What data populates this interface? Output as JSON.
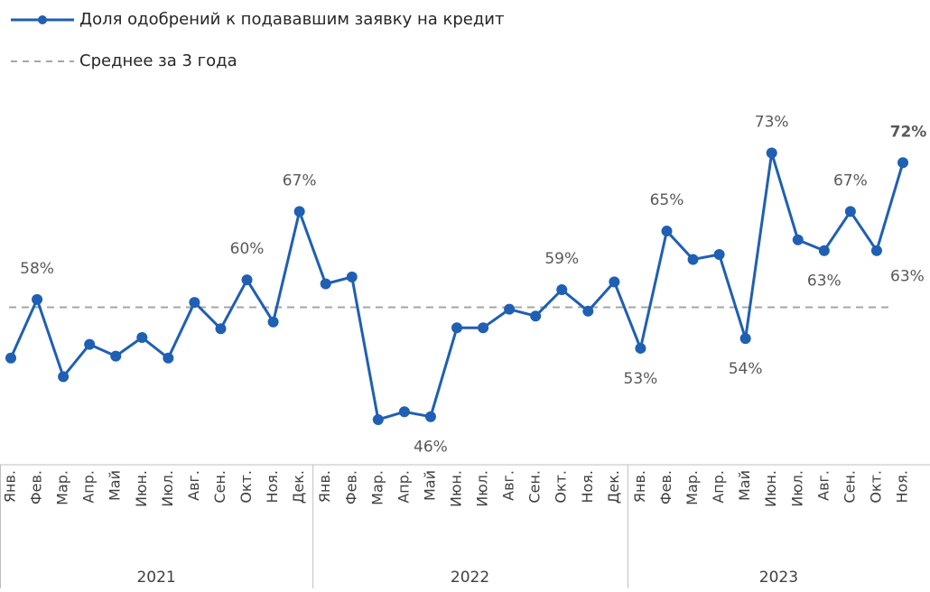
{
  "chart_data": {
    "type": "line",
    "categories": [
      "Янв.",
      "Фев.",
      "Мар.",
      "Апр.",
      "Май",
      "Июн.",
      "Июл.",
      "Авг.",
      "Сен.",
      "Окт.",
      "Ноя.",
      "Дек.",
      "Янв.",
      "Фев.",
      "Мар.",
      "Апр.",
      "Май",
      "Июн.",
      "Июл.",
      "Авг.",
      "Сен.",
      "Окт.",
      "Ноя.",
      "Дек.",
      "Янв.",
      "Фев.",
      "Мар.",
      "Апр.",
      "Май",
      "Июн.",
      "Июл.",
      "Авг.",
      "Сен.",
      "Окт.",
      "Ноя."
    ],
    "years": [
      "2021",
      "2022",
      "2023"
    ],
    "series": [
      {
        "name": "Доля одобрений к подававшим заявку на кредит",
        "color": "#1f5fb4",
        "values": [
          52.0,
          58,
          50.1,
          53.4,
          52.2,
          54.1,
          52.0,
          57.7,
          55.0,
          60,
          55.7,
          67,
          59.6,
          60.3,
          45.7,
          46.5,
          46,
          55.1,
          55.1,
          57.0,
          56.3,
          59,
          56.8,
          59.8,
          53,
          65,
          62.1,
          62.6,
          54,
          73,
          64.1,
          63,
          67,
          63,
          72
        ],
        "value_labels": [
          null,
          "58%",
          null,
          null,
          null,
          null,
          null,
          null,
          null,
          "60%",
          null,
          "67%",
          null,
          null,
          null,
          null,
          "46%",
          null,
          null,
          null,
          null,
          "59%",
          null,
          null,
          "53%",
          "65%",
          null,
          null,
          "54%",
          "73%",
          null,
          "63%",
          "67%",
          "63%",
          "72%"
        ]
      }
    ],
    "reference_line": {
      "name": "Среднее за 3 года",
      "value": 57.2,
      "color": "#a6a6a6"
    },
    "ylim": [
      42,
      76
    ]
  }
}
